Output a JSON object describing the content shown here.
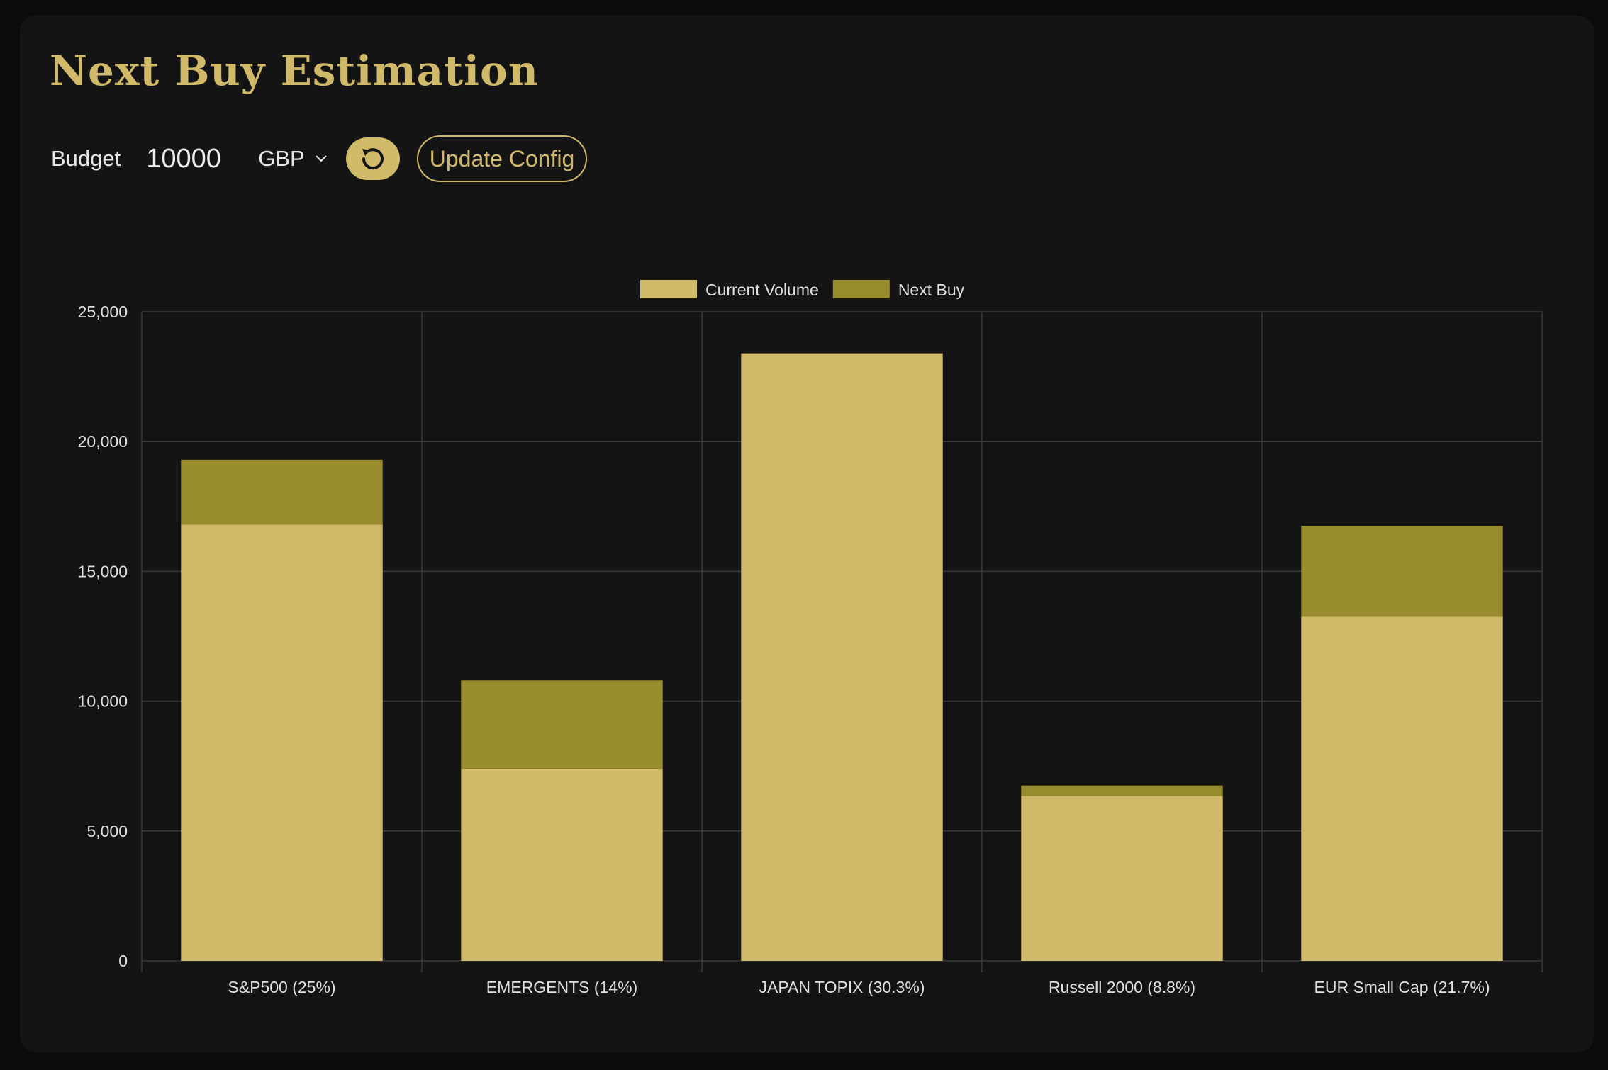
{
  "title": "Next Buy Estimation",
  "controls": {
    "budget_label": "Budget",
    "budget_value": "10000",
    "currency": "GBP",
    "update_label": "Update Config",
    "reset_icon": "reset-icon",
    "chevron_icon": "chevron-down-icon"
  },
  "colors": {
    "accent": "#d1b96a",
    "next_buy": "#998c2e",
    "background": "#141414"
  },
  "chart_data": {
    "type": "bar",
    "stacked": true,
    "categories": [
      "S&P500 (25%)",
      "EMERGENTS (14%)",
      "JAPAN TOPIX (30.3%)",
      "Russell 2000 (8.8%)",
      "EUR Small Cap (21.7%)"
    ],
    "series": [
      {
        "name": "Current Volume",
        "color": "#d1b96a",
        "values": [
          16800,
          7400,
          23400,
          6350,
          13250
        ]
      },
      {
        "name": "Next Buy",
        "color": "#998c2e",
        "values": [
          2500,
          3400,
          0,
          400,
          3500
        ]
      }
    ],
    "ylim": [
      0,
      25000
    ],
    "yticks": [
      0,
      5000,
      10000,
      15000,
      20000,
      25000
    ],
    "ytick_labels": [
      "0",
      "5,000",
      "10,000",
      "15,000",
      "20,000",
      "25,000"
    ],
    "grid": true,
    "legend_position": "top-center",
    "title": "",
    "xlabel": "",
    "ylabel": ""
  }
}
